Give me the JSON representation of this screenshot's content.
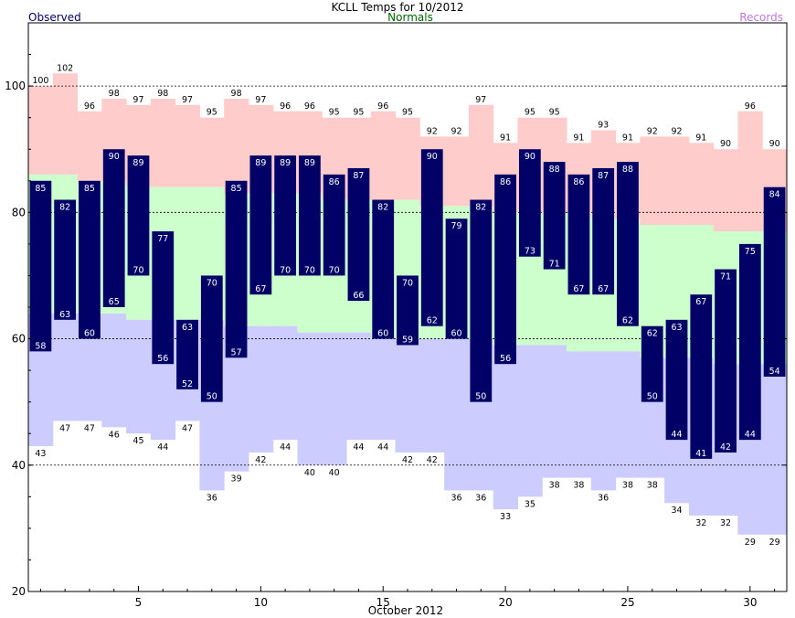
{
  "chart_data": {
    "type": "bar",
    "title": "KCLL Temps for 10/2012",
    "xlabel": "October 2012",
    "ylabel": "",
    "legend": [
      {
        "label": "Observed",
        "color": "#000066",
        "position": "top-left"
      },
      {
        "label": "Normals",
        "color": "#006600",
        "position": "top-center"
      },
      {
        "label": "Records",
        "color": "#bb77dd",
        "position": "top-right"
      }
    ],
    "colors": {
      "observed": "#000066",
      "normals": "#ccffcc",
      "record_high": "#ffcccc",
      "record_low": "#ccccff",
      "observed_label": "#ffffff"
    },
    "xlim": [
      1,
      31
    ],
    "ylim": [
      20,
      110
    ],
    "x_ticks": [
      5,
      10,
      15,
      20,
      25,
      30
    ],
    "y_ticks": [
      20,
      40,
      60,
      80,
      100
    ],
    "dashed_gridlines_y": [
      40,
      60,
      80,
      100
    ],
    "days": [
      1,
      2,
      3,
      4,
      5,
      6,
      7,
      8,
      9,
      10,
      11,
      12,
      13,
      14,
      15,
      16,
      17,
      18,
      19,
      20,
      21,
      22,
      23,
      24,
      25,
      26,
      27,
      28,
      29,
      30,
      31
    ],
    "observed_high": [
      85,
      82,
      85,
      90,
      89,
      77,
      63,
      70,
      85,
      89,
      89,
      89,
      86,
      87,
      82,
      70,
      90,
      79,
      82,
      86,
      90,
      88,
      86,
      87,
      88,
      62,
      63,
      67,
      71,
      75,
      84
    ],
    "observed_low": [
      58,
      63,
      60,
      65,
      70,
      56,
      52,
      50,
      57,
      67,
      70,
      70,
      70,
      66,
      60,
      59,
      62,
      60,
      50,
      56,
      73,
      71,
      67,
      67,
      62,
      50,
      44,
      41,
      42,
      44,
      54
    ],
    "normal_high": [
      86,
      86,
      85,
      85,
      84,
      84,
      84,
      84,
      83,
      83,
      83,
      83,
      82,
      82,
      82,
      82,
      81,
      81,
      81,
      80,
      80,
      80,
      80,
      79,
      79,
      78,
      78,
      78,
      77,
      77,
      77
    ],
    "normal_low": [
      64,
      64,
      64,
      64,
      63,
      63,
      63,
      63,
      62,
      62,
      62,
      61,
      61,
      61,
      60,
      60,
      60,
      60,
      60,
      59,
      59,
      59,
      58,
      58,
      58,
      57,
      57,
      57,
      56,
      56,
      56
    ],
    "record_high": [
      100,
      102,
      96,
      98,
      97,
      98,
      97,
      95,
      98,
      97,
      96,
      96,
      95,
      95,
      96,
      95,
      92,
      92,
      97,
      91,
      95,
      95,
      91,
      93,
      91,
      92,
      92,
      91,
      90,
      96,
      90
    ],
    "record_low": [
      43,
      47,
      47,
      46,
      45,
      44,
      47,
      36,
      39,
      42,
      44,
      40,
      40,
      44,
      44,
      42,
      42,
      36,
      36,
      33,
      35,
      38,
      38,
      36,
      38,
      38,
      34,
      32,
      32,
      29,
      29
    ]
  }
}
